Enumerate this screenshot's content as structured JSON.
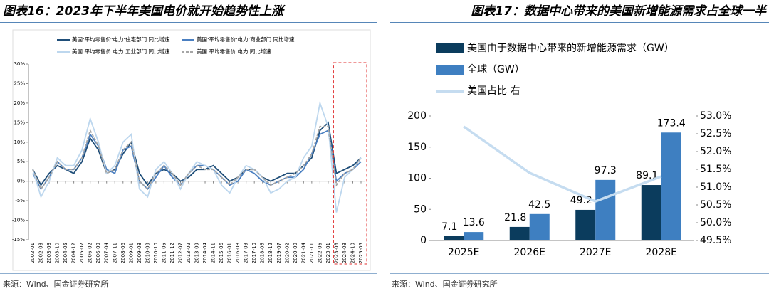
{
  "chart_data": [
    {
      "type": "line",
      "title": "图表16：2023年下半年美国电价就开始趋势性上涨",
      "source": "来源：Wind、国金证券研究所",
      "categories": [
        "2002-01",
        "2002-08",
        "2003-03",
        "2003-10",
        "2004-05",
        "2004-12",
        "2005-07",
        "2006-02",
        "2006-09",
        "2007-04",
        "2007-11",
        "2008-06",
        "2009-01",
        "2009-08",
        "2010-03",
        "2010-10",
        "2011-05",
        "2011-12",
        "2012-07",
        "2013-02",
        "2013-09",
        "2014-04",
        "2014-11",
        "2015-06",
        "2016-01",
        "2016-08",
        "2017-03",
        "2017-10",
        "2018-05",
        "2018-12",
        "2019-07",
        "2020-02",
        "2020-09",
        "2021-04",
        "2021-11",
        "2022-06",
        "2023-01",
        "2023-08",
        "2024-03",
        "2024-10",
        "2025-05"
      ],
      "series": [
        {
          "name": "美国:平均零售价:电力:住宅部门 同比增速",
          "color": "#1f4e79",
          "dash": false,
          "values": [
            3,
            -1,
            2,
            4,
            3,
            2,
            5,
            11,
            8,
            2,
            3,
            7,
            10,
            2,
            -1,
            2,
            3,
            2,
            0,
            1,
            3,
            3,
            4,
            2,
            0,
            1,
            3,
            3,
            1,
            0,
            1,
            2,
            2,
            4,
            6,
            13,
            15,
            2,
            3,
            4,
            6
          ]
        },
        {
          "name": "美国:平均零售价:电力:商业部门 同比增速",
          "color": "#4a7fc1",
          "dash": false,
          "values": [
            2,
            -2,
            1,
            5,
            3,
            3,
            6,
            12,
            9,
            3,
            2,
            8,
            9,
            0,
            -2,
            1,
            4,
            1,
            -1,
            2,
            4,
            4,
            3,
            1,
            -1,
            0,
            3,
            2,
            0,
            -1,
            0,
            1,
            1,
            3,
            7,
            12,
            13,
            0,
            2,
            3,
            5
          ]
        },
        {
          "name": "美国:平均零售价:电力:工业部门 同比增速",
          "color": "#bdd7ee",
          "dash": false,
          "values": [
            3,
            -4,
            0,
            6,
            4,
            4,
            8,
            16,
            10,
            2,
            4,
            10,
            12,
            -2,
            -4,
            3,
            5,
            2,
            -2,
            2,
            5,
            4,
            3,
            -1,
            -3,
            1,
            4,
            3,
            1,
            -3,
            -2,
            0,
            1,
            6,
            9,
            20,
            14,
            -8,
            1,
            3,
            6
          ]
        },
        {
          "name": "美国:平均零售价:电力 同比增速",
          "color": "#a6a6a6",
          "dash": true,
          "values": [
            3,
            -2,
            1,
            5,
            3,
            3,
            6,
            13,
            9,
            2,
            3,
            8,
            10,
            0,
            -2,
            2,
            4,
            2,
            -1,
            2,
            4,
            3,
            3,
            1,
            -1,
            1,
            3,
            3,
            1,
            -1,
            0,
            1,
            2,
            4,
            7,
            14,
            14,
            -1,
            2,
            3,
            6
          ]
        }
      ],
      "ylim": [
        -15,
        30
      ],
      "yticks": [
        {
          "value": -15,
          "label": "-15%"
        },
        {
          "value": -10,
          "label": "-10%"
        },
        {
          "value": -5,
          "label": "-5%"
        },
        {
          "value": 0,
          "label": "0%"
        },
        {
          "value": 5,
          "label": "5%"
        },
        {
          "value": 10,
          "label": "10%"
        },
        {
          "value": 15,
          "label": "15%"
        },
        {
          "value": 20,
          "label": "20%"
        },
        {
          "value": 25,
          "label": "25%"
        },
        {
          "value": 30,
          "label": "30%"
        }
      ]
    },
    {
      "type": "bar",
      "title": "图表17：数据中心带来的美国新增能源需求占全球一半",
      "source": "来源：Wind、国金证券研究所",
      "categories": [
        "2025E",
        "2026E",
        "2027E",
        "2028E"
      ],
      "series": [
        {
          "name": "美国由于数据中心带来的新增能源需求（GW）",
          "color": "#0b3c5d",
          "values": [
            7.1,
            21.8,
            49.2,
            89.1
          ]
        },
        {
          "name": "全球（GW）",
          "color": "#3e7fc1",
          "values": [
            13.6,
            42.5,
            97.3,
            173.4
          ]
        },
        {
          "name": "美国占比 右",
          "color": "#c5dcf0",
          "type": "line",
          "axis": "y2",
          "values": [
            52.7,
            51.4,
            50.6,
            51.3
          ]
        }
      ],
      "ylim": [
        0,
        200
      ],
      "yticks": [
        0,
        50,
        100,
        150,
        200
      ],
      "y2lim": [
        49.5,
        53.0
      ],
      "y2ticks": [
        {
          "value": 49.5,
          "label": "49.5%"
        },
        {
          "value": 50.0,
          "label": "50.0%"
        },
        {
          "value": 50.5,
          "label": "50.5%"
        },
        {
          "value": 51.0,
          "label": "51.0%"
        },
        {
          "value": 51.5,
          "label": "51.5%"
        },
        {
          "value": 52.0,
          "label": "52.0%"
        },
        {
          "value": 52.5,
          "label": "52.5%"
        },
        {
          "value": 53.0,
          "label": "53.0%"
        }
      ]
    }
  ]
}
